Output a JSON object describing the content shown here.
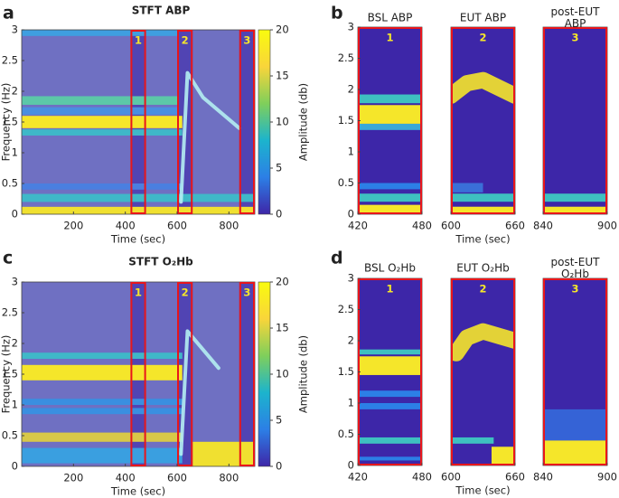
{
  "chart_data": [
    {
      "type": "heatmap",
      "panel": "a",
      "title": "STFT ABP",
      "xlabel": "Time (sec)",
      "ylabel": "Frequency (Hz)",
      "xlim": [
        0,
        900
      ],
      "xticks": [
        200,
        400,
        600,
        800
      ],
      "ylim": [
        0,
        3
      ],
      "yticks": [
        0,
        0.5,
        1,
        1.5,
        2,
        2.5,
        3
      ],
      "background": "#6f70c2",
      "bands": [
        {
          "y": [
            2.9,
            3
          ],
          "x": [
            0,
            600
          ],
          "color": "#3f9ee0"
        },
        {
          "y": [
            1.78,
            1.92
          ],
          "x": [
            0,
            600
          ],
          "color": "#5cc8a8"
        },
        {
          "y": [
            1.62,
            1.74
          ],
          "x": [
            0,
            600
          ],
          "color": "#4a8fe0"
        },
        {
          "y": [
            1.4,
            1.6
          ],
          "x": [
            0,
            620
          ],
          "color": "#f5e62a"
        },
        {
          "y": [
            1.28,
            1.38
          ],
          "x": [
            0,
            620
          ],
          "color": "#3fb8c8"
        },
        {
          "y": [
            0.4,
            0.5
          ],
          "x": [
            0,
            620
          ],
          "color": "#4a7fe0"
        },
        {
          "y": [
            0.2,
            0.33
          ],
          "x": [
            0,
            900
          ],
          "color": "#3fb8c8"
        },
        {
          "y": [
            0,
            0.12
          ],
          "x": [
            0,
            900
          ],
          "color": "#f0e030"
        }
      ],
      "curves": [
        {
          "points": [
            [
              615,
              0.2
            ],
            [
              640,
              2.3
            ],
            [
              700,
              1.9
            ],
            [
              840,
              1.4
            ]
          ],
          "color": "#b4eef2"
        }
      ],
      "boxes": [
        {
          "label": "1",
          "x": [
            420,
            480
          ]
        },
        {
          "label": "2",
          "x": [
            600,
            660
          ]
        },
        {
          "label": "3",
          "x": [
            840,
            900
          ]
        }
      ],
      "colorbar": {
        "label": "Amplitude (db)",
        "lim": [
          0,
          20
        ],
        "ticks": [
          0,
          5,
          10,
          15,
          20
        ],
        "colors": [
          "#3e26a8",
          "#2c7fe6",
          "#1cb4cd",
          "#7fcf5b",
          "#f9d53a",
          "#f9fb0e"
        ]
      }
    },
    {
      "type": "heatmap",
      "panel": "b",
      "title": [
        "BSL ABP"
      ],
      "xlim": [
        420,
        480
      ],
      "xticks": [
        420,
        480
      ],
      "ylim": [
        0,
        3
      ],
      "yticks": [
        0,
        0.5,
        1,
        1.5,
        2,
        2.5,
        3
      ],
      "background": "#3e26a8",
      "bands": [
        {
          "y": [
            1.78,
            1.92
          ],
          "color": "#3ec0c0"
        },
        {
          "y": [
            1.45,
            1.75
          ],
          "color": "#f5e62a"
        },
        {
          "y": [
            1.35,
            1.45
          ],
          "color": "#3aa8d8"
        },
        {
          "y": [
            0.4,
            0.5
          ],
          "color": "#2c7fe6"
        },
        {
          "y": [
            0.2,
            0.33
          ],
          "color": "#3ec0c0"
        },
        {
          "y": [
            0,
            0.15
          ],
          "color": "#f5e62a"
        }
      ],
      "curves": [],
      "boxes": [
        {
          "label": "1",
          "x": [
            420,
            480
          ]
        }
      ]
    },
    {
      "type": "heatmap",
      "title": [
        "EUT ABP"
      ],
      "xlabel": "Time (sec)",
      "xlim": [
        600,
        660
      ],
      "xticks": [
        600,
        660
      ],
      "ylim": [
        0,
        3
      ],
      "background": "#3e26a8",
      "bands": [
        {
          "y": [
            0.2,
            0.33
          ],
          "color": "#3ec0c0"
        },
        {
          "y": [
            0,
            0.12
          ],
          "color": "#f5e62a"
        },
        {
          "y": [
            0.35,
            0.5
          ],
          "x": [
            600,
            630
          ],
          "color": "#3a6fd8"
        }
      ],
      "curves": [
        {
          "points": [
            [
              600,
              1.9
            ],
            [
              615,
              2.1
            ],
            [
              630,
              2.15
            ],
            [
              660,
              1.9
            ]
          ],
          "color": "#f5e62a"
        }
      ],
      "boxes": [
        {
          "label": "2",
          "x": [
            600,
            660
          ]
        }
      ]
    },
    {
      "type": "heatmap",
      "title": [
        "post-EUT",
        "ABP"
      ],
      "xlim": [
        840,
        900
      ],
      "xticks": [
        840,
        900
      ],
      "ylim": [
        0,
        3
      ],
      "background": "#3e26a8",
      "bands": [
        {
          "y": [
            0.2,
            0.33
          ],
          "color": "#3ec0c0"
        },
        {
          "y": [
            0,
            0.12
          ],
          "color": "#f5e62a"
        }
      ],
      "curves": [],
      "boxes": [
        {
          "label": "3",
          "x": [
            840,
            900
          ]
        }
      ]
    },
    {
      "type": "heatmap",
      "panel": "c",
      "title": "STFT O₂Hb",
      "xlabel": "Time (sec)",
      "ylabel": "Frequency (Hz)",
      "xlim": [
        0,
        900
      ],
      "xticks": [
        200,
        400,
        600,
        800
      ],
      "ylim": [
        0,
        3
      ],
      "yticks": [
        0,
        0.5,
        1,
        1.5,
        2,
        2.5,
        3
      ],
      "background": "#6f70c2",
      "bands": [
        {
          "y": [
            1.75,
            1.85
          ],
          "x": [
            0,
            620
          ],
          "color": "#3fb8c8"
        },
        {
          "y": [
            1.4,
            1.65
          ],
          "x": [
            0,
            620
          ],
          "color": "#f5e62a"
        },
        {
          "y": [
            1.0,
            1.1
          ],
          "x": [
            0,
            620
          ],
          "color": "#3a8fe0"
        },
        {
          "y": [
            0.85,
            0.95
          ],
          "x": [
            0,
            620
          ],
          "color": "#3a8fe0"
        },
        {
          "y": [
            0.4,
            0.55
          ],
          "x": [
            0,
            620
          ],
          "color": "#d8c848"
        },
        {
          "y": [
            0.05,
            0.3
          ],
          "x": [
            0,
            620
          ],
          "color": "#3a9fe0"
        },
        {
          "y": [
            0,
            0.4
          ],
          "x": [
            660,
            900
          ],
          "color": "#f0e030"
        }
      ],
      "curves": [
        {
          "points": [
            [
              615,
              0.2
            ],
            [
              640,
              2.2
            ],
            [
              700,
              1.9
            ],
            [
              760,
              1.6
            ]
          ],
          "color": "#b4eef2"
        }
      ],
      "boxes": [
        {
          "label": "1",
          "x": [
            420,
            480
          ]
        },
        {
          "label": "2",
          "x": [
            600,
            660
          ]
        },
        {
          "label": "3",
          "x": [
            840,
            900
          ]
        }
      ],
      "colorbar": {
        "label": "Amplitude (db)",
        "lim": [
          0,
          20
        ],
        "ticks": [
          0,
          5,
          10,
          15,
          20
        ],
        "colors": [
          "#3e26a8",
          "#2c7fe6",
          "#1cb4cd",
          "#7fcf5b",
          "#f9d53a",
          "#f9fb0e"
        ]
      }
    },
    {
      "type": "heatmap",
      "panel": "d",
      "title": [
        "BSL O₂Hb"
      ],
      "xlim": [
        420,
        480
      ],
      "xticks": [
        420,
        480
      ],
      "ylim": [
        0,
        3
      ],
      "yticks": [
        0,
        0.5,
        1,
        1.5,
        2,
        2.5,
        3
      ],
      "background": "#3e26a8",
      "bands": [
        {
          "y": [
            1.78,
            1.86
          ],
          "color": "#3ec0c0"
        },
        {
          "y": [
            1.45,
            1.75
          ],
          "color": "#f5e62a"
        },
        {
          "y": [
            1.1,
            1.2
          ],
          "color": "#2c7fe6"
        },
        {
          "y": [
            0.9,
            1.0
          ],
          "color": "#2c7fe6"
        },
        {
          "y": [
            0.35,
            0.45
          ],
          "color": "#3ec0c0"
        },
        {
          "y": [
            0.08,
            0.14
          ],
          "color": "#2c7fe6"
        }
      ],
      "curves": [],
      "boxes": [
        {
          "label": "1",
          "x": [
            420,
            480
          ]
        }
      ]
    },
    {
      "type": "heatmap",
      "title": [
        "EUT O₂Hb"
      ],
      "xlabel": "Time (sec)",
      "xlim": [
        600,
        660
      ],
      "xticks": [
        600,
        660
      ],
      "ylim": [
        0,
        3
      ],
      "background": "#3e26a8",
      "bands": [
        {
          "y": [
            0.35,
            0.45
          ],
          "x": [
            600,
            640
          ],
          "color": "#3ec0c0"
        },
        {
          "y": [
            0,
            0.3
          ],
          "x": [
            638,
            660
          ],
          "color": "#f5e62a"
        }
      ],
      "curves": [
        {
          "points": [
            [
              605,
              1.8
            ],
            [
              615,
              2.05
            ],
            [
              630,
              2.15
            ],
            [
              660,
              2.0
            ]
          ],
          "color": "#f5e62a"
        }
      ],
      "boxes": [
        {
          "label": "2",
          "x": [
            600,
            660
          ]
        }
      ]
    },
    {
      "type": "heatmap",
      "title": [
        "post-EUT",
        "O₂Hb"
      ],
      "xlim": [
        840,
        900
      ],
      "xticks": [
        840,
        900
      ],
      "ylim": [
        0,
        3
      ],
      "background": "#3e26a8",
      "bands": [
        {
          "y": [
            0.4,
            0.9
          ],
          "color": "#3563d6"
        },
        {
          "y": [
            0,
            0.4
          ],
          "color": "#f5e62a"
        }
      ],
      "curves": [],
      "boxes": [
        {
          "label": "3",
          "x": [
            840,
            900
          ]
        }
      ]
    }
  ]
}
